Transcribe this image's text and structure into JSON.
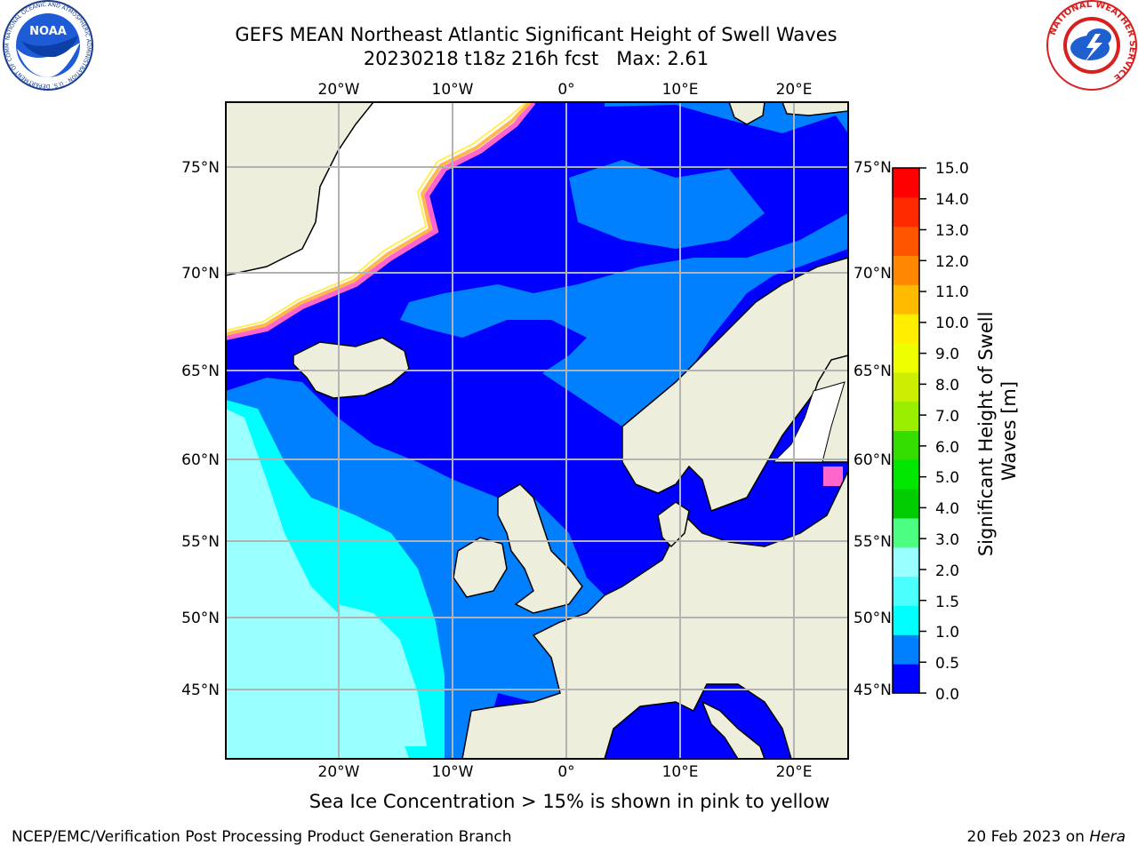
{
  "title": {
    "line1": "GEFS MEAN Northeast Atlantic Significant Height of Swell Waves",
    "line2": "20230218 t18z 216h fcst   Max: 2.61"
  },
  "logos": {
    "left": {
      "name": "noaa-logo",
      "text": "NOAA",
      "ring_text": "NATIONAL OCEANIC AND ATMOSPHERIC ADMINISTRATION · U.S. DEPARTMENT OF COMMERCE"
    },
    "right": {
      "name": "nws-logo",
      "ring_text": "NATIONAL WEATHER SERVICE"
    }
  },
  "map": {
    "lon_ticks": [
      "20°W",
      "10°W",
      "0°",
      "10°E",
      "20°E"
    ],
    "lat_ticks": [
      "75°N",
      "70°N",
      "65°N",
      "60°N",
      "55°N",
      "50°N",
      "45°N"
    ],
    "colors": {
      "ocean_low": "#0000ff",
      "ocean_mid": "#0080ff",
      "ocean_cyan": "#00ffff",
      "ocean_light": "#99ffff",
      "land": "#eeeedd",
      "ice_pink": "#ff66cc",
      "ice_orange": "#ffb84d",
      "ice_yellow": "#ffee55",
      "grid": "#b3b3b3"
    }
  },
  "colorbar": {
    "label": "Significant Height of Swell Waves [m]",
    "ticks": [
      "15.0",
      "14.0",
      "13.0",
      "12.0",
      "11.0",
      "10.0",
      "9.0",
      "8.0",
      "7.0",
      "6.0",
      "5.0",
      "4.0",
      "3.0",
      "2.0",
      "1.5",
      "1.0",
      "0.5",
      "0.0"
    ],
    "colors_bottom_to_top": [
      "#0000ff",
      "#0080ff",
      "#00ffff",
      "#4cffff",
      "#99ffff",
      "#4dff80",
      "#00cc00",
      "#00e600",
      "#33dd00",
      "#99ee00",
      "#ccee00",
      "#eeff00",
      "#ffee00",
      "#ffbb00",
      "#ff8800",
      "#ff5500",
      "#ff2a00",
      "#ff0000"
    ]
  },
  "caption": "Sea Ice Concentration > 15% is shown in pink to yellow",
  "footer": {
    "left": "NCEP/EMC/Verification Post Processing Product Generation Branch",
    "right_prefix": "20 Feb 2023 on ",
    "right_machine": "Hera"
  }
}
